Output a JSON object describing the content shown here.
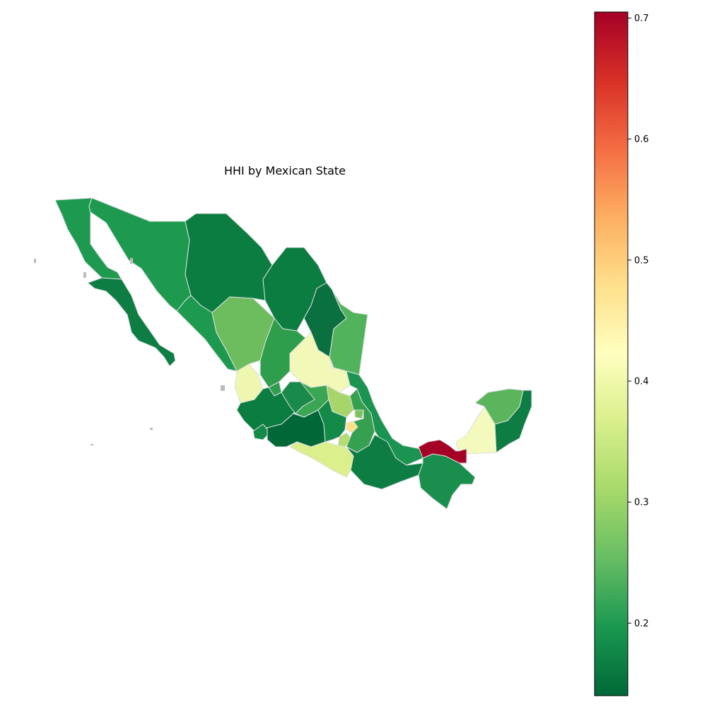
{
  "title": "HHI by Mexican State",
  "colorbar": {
    "colormap": "RdYlGn_r",
    "min": 0.14,
    "max": 0.705,
    "ticks": [
      {
        "value": 0.2,
        "label": "0.2"
      },
      {
        "value": 0.3,
        "label": "0.3"
      },
      {
        "value": 0.4,
        "label": "0.4"
      },
      {
        "value": 0.5,
        "label": "0.5"
      },
      {
        "value": 0.6,
        "label": "0.6"
      },
      {
        "value": 0.7,
        "label": "0.7"
      }
    ],
    "stops": [
      "#006837",
      "#1a9850",
      "#66bd63",
      "#a6d96a",
      "#d9ef8b",
      "#ffffbf",
      "#fee08b",
      "#fdae61",
      "#f46d43",
      "#d73027",
      "#a50026"
    ]
  },
  "border_color": "#e0e0e0",
  "coast_color": "#bdbdbd"
}
